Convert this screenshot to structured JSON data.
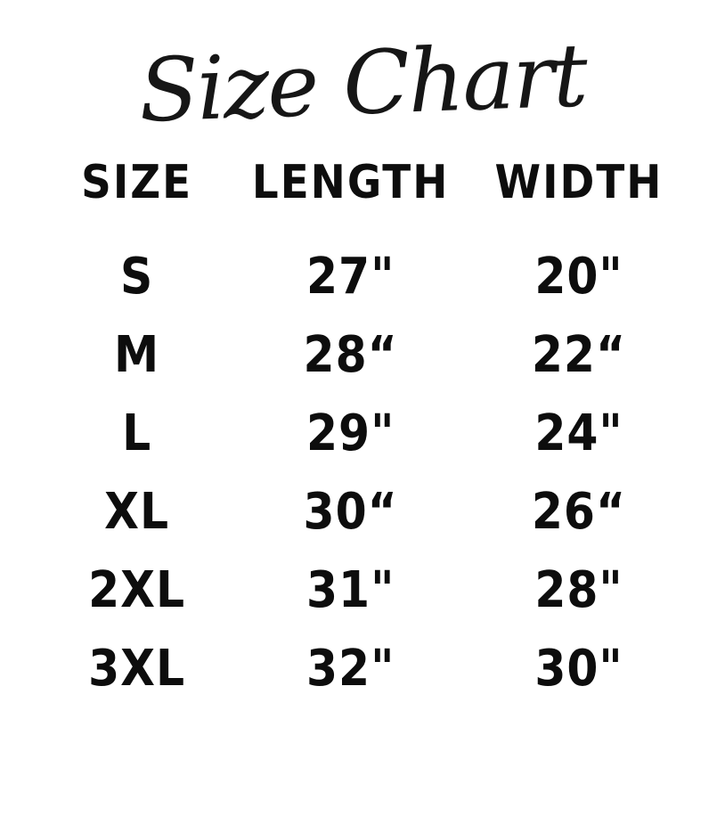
{
  "title": "Size Chart",
  "table": {
    "headers": [
      "SIZE",
      "LENGTH",
      "WIDTH"
    ],
    "rows": [
      {
        "size": "S",
        "length": "27\"",
        "width": "20\""
      },
      {
        "size": "M",
        "length": "28“",
        "width": "22“"
      },
      {
        "size": "L",
        "length": "29\"",
        "width": "24\""
      },
      {
        "size": "XL",
        "length": "30“",
        "width": "26“"
      },
      {
        "size": "2XL",
        "length": "31\"",
        "width": "28\""
      },
      {
        "size": "3XL",
        "length": "32\"",
        "width": "30\""
      }
    ]
  },
  "colors": {
    "text": "#101010",
    "background": "#ffffff"
  },
  "chart_data": {
    "type": "table",
    "title": "Size Chart",
    "columns": [
      "SIZE",
      "LENGTH",
      "WIDTH"
    ],
    "rows": [
      [
        "S",
        "27\"",
        "20\""
      ],
      [
        "M",
        "28“",
        "22“"
      ],
      [
        "L",
        "29\"",
        "24\""
      ],
      [
        "XL",
        "30“",
        "26“"
      ],
      [
        "2XL",
        "31\"",
        "28\""
      ],
      [
        "3XL",
        "32\"",
        "30\""
      ]
    ],
    "length_values_in": [
      27,
      28,
      29,
      30,
      31,
      32
    ],
    "width_values_in": [
      20,
      22,
      24,
      26,
      28,
      30
    ]
  }
}
